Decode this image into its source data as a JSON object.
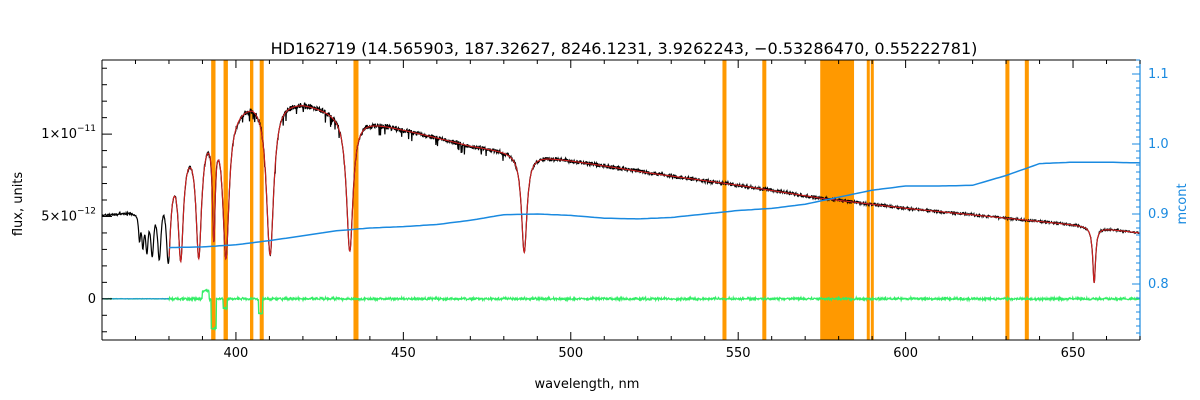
{
  "chart_data": {
    "type": "line",
    "title": "HD162719    (14.565903, 187.32627, 8246.1231, 3.9262243, −0.53286470, 0.55222781)",
    "xlabel": "wavelength, nm",
    "ylabel": "flux, units",
    "ylabel_right": "mcont",
    "xlim": [
      360,
      670
    ],
    "ylim": [
      -2.5e-12,
      1.45e-11
    ],
    "ylim_right": [
      0.72,
      1.12
    ],
    "x_ticks": [
      400,
      450,
      500,
      550,
      600,
      650
    ],
    "x_tick_labels": [
      "400",
      "450",
      "500",
      "550",
      "600",
      "650"
    ],
    "y_ticks": [
      0,
      5e-12,
      1e-11
    ],
    "y_tick_labels": [
      {
        "mant": "0",
        "exp": ""
      },
      {
        "mant": "5×10",
        "exp": "−12"
      },
      {
        "mant": "1×10",
        "exp": "−11"
      }
    ],
    "y_right_ticks": [
      0.8,
      0.9,
      1.0,
      1.1
    ],
    "y_right_tick_labels": [
      "0.8",
      "0.9",
      "1.0",
      "1.1"
    ],
    "colors": {
      "observed": "#000000",
      "model": "#cc2020",
      "residual": "#33ee66",
      "continuum": "#1a8ae0",
      "mask": "#ff9900",
      "right_axis": "#1a8ae0"
    },
    "continuum_level": 5e-12,
    "continuum_start": 380,
    "continuum_points": [
      [
        380,
        0.852
      ],
      [
        390,
        0.853
      ],
      [
        400,
        0.856
      ],
      [
        410,
        0.862
      ],
      [
        420,
        0.869
      ],
      [
        430,
        0.876
      ],
      [
        440,
        0.88
      ],
      [
        450,
        0.882
      ],
      [
        460,
        0.885
      ],
      [
        470,
        0.891
      ],
      [
        480,
        0.899
      ],
      [
        490,
        0.9
      ],
      [
        500,
        0.898
      ],
      [
        510,
        0.894
      ],
      [
        520,
        0.893
      ],
      [
        530,
        0.895
      ],
      [
        540,
        0.9
      ],
      [
        550,
        0.905
      ],
      [
        560,
        0.908
      ],
      [
        570,
        0.914
      ],
      [
        580,
        0.924
      ],
      [
        590,
        0.934
      ],
      [
        600,
        0.94
      ],
      [
        610,
        0.94
      ],
      [
        620,
        0.941
      ],
      [
        630,
        0.955
      ],
      [
        640,
        0.972
      ],
      [
        650,
        0.974
      ],
      [
        660,
        0.974
      ],
      [
        670,
        0.973
      ]
    ],
    "shape_points": [
      [
        360,
        5.1e-12
      ],
      [
        365,
        5.2e-12
      ],
      [
        370,
        5.4e-12
      ],
      [
        375,
        6.5e-12
      ],
      [
        380,
        8e-12
      ],
      [
        385,
        9.5e-12
      ],
      [
        390,
        1.05e-11
      ],
      [
        395,
        1.12e-11
      ],
      [
        400,
        1.17e-11
      ],
      [
        405,
        1.22e-11
      ],
      [
        410,
        1.22e-11
      ],
      [
        420,
        1.2e-11
      ],
      [
        430,
        1.14e-11
      ],
      [
        440,
        1.08e-11
      ],
      [
        450,
        1.03e-11
      ],
      [
        470,
        9.3e-12
      ],
      [
        490,
        8.7e-12
      ],
      [
        500,
        8.4e-12
      ],
      [
        525,
        7.6e-12
      ],
      [
        550,
        6.9e-12
      ],
      [
        575,
        6.1e-12
      ],
      [
        600,
        5.5e-12
      ],
      [
        625,
        5e-12
      ],
      [
        650,
        4.5e-12
      ],
      [
        670,
        4e-12
      ]
    ],
    "absorption_lines": [
      {
        "center": 656.3,
        "depth": 0.78,
        "width": 0.5
      },
      {
        "center": 486.1,
        "depth": 0.68,
        "width": 1.0
      },
      {
        "center": 434.0,
        "depth": 0.74,
        "width": 1.2
      },
      {
        "center": 410.2,
        "depth": 0.78,
        "width": 1.3
      },
      {
        "center": 397.0,
        "depth": 0.78,
        "width": 1.1
      },
      {
        "center": 393.4,
        "depth": 0.65,
        "width": 0.5
      },
      {
        "center": 388.9,
        "depth": 0.75,
        "width": 1.0
      },
      {
        "center": 383.5,
        "depth": 0.73,
        "width": 0.9
      },
      {
        "center": 379.8,
        "depth": 0.7,
        "width": 0.8
      },
      {
        "center": 377.1,
        "depth": 0.62,
        "width": 0.7
      },
      {
        "center": 375.0,
        "depth": 0.55,
        "width": 0.6
      },
      {
        "center": 373.4,
        "depth": 0.48,
        "width": 0.5
      },
      {
        "center": 372.2,
        "depth": 0.4,
        "width": 0.4
      },
      {
        "center": 371.2,
        "depth": 0.32,
        "width": 0.35
      }
    ],
    "mask_bands": [
      [
        392.6,
        393.9
      ],
      [
        396.3,
        397.6
      ],
      [
        404.2,
        405.2
      ],
      [
        407.1,
        408.3
      ],
      [
        435.1,
        436.6
      ],
      [
        545.3,
        546.5
      ],
      [
        557.2,
        558.4
      ],
      [
        574.5,
        584.6
      ],
      [
        588.4,
        589.3
      ],
      [
        589.6,
        590.5
      ],
      [
        629.8,
        631.0
      ],
      [
        635.6,
        636.8
      ]
    ]
  }
}
